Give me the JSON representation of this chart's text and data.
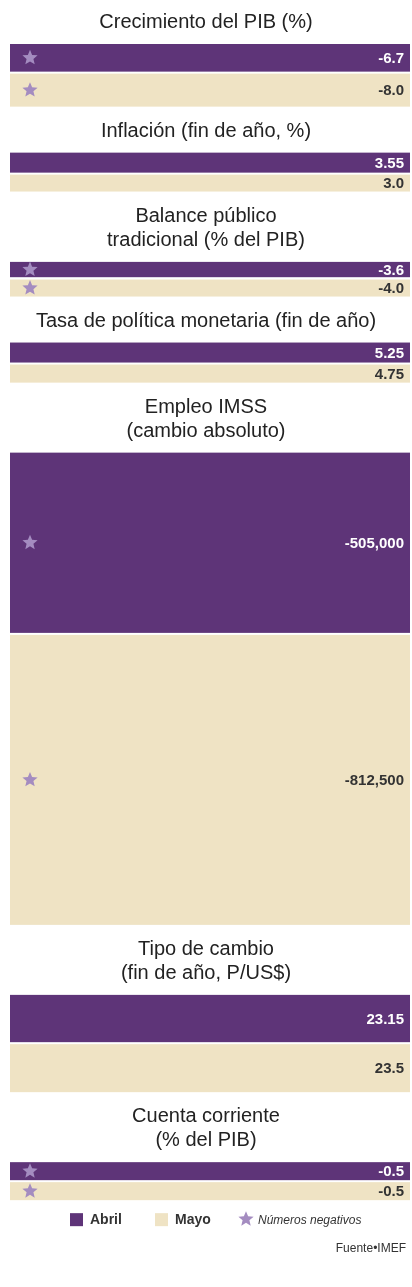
{
  "chart_data": [
    {
      "type": "other",
      "title": "Crecimiento del PIB (%)",
      "categories": [
        null,
        null
      ],
      "values": [
        -6.7,
        -8.0
      ],
      "value_labels": [
        "-6.7",
        "-8.0"
      ],
      "colors": [
        "#5e3478",
        "#efe3c4"
      ]
    },
    {
      "type": "other",
      "title": "Inflación (fin de año, %)",
      "categories": [
        null,
        null
      ],
      "values": [
        3.55,
        3.0
      ],
      "value_labels": [
        "3.55",
        "3.0"
      ],
      "colors": [
        "#5e3478",
        "#efe3c4"
      ]
    },
    {
      "type": "other",
      "title": "Balance público\ntradicional (% del PIB)",
      "categories": [
        null,
        null
      ],
      "values": [
        -3.6,
        -4.0
      ],
      "value_labels": [
        "-3.6",
        "-4.0"
      ],
      "colors": [
        "#5e3478",
        "#efe3c4"
      ]
    },
    {
      "type": "other",
      "title": "Tasa de política monetaria (fin de año)",
      "categories": [
        null,
        null
      ],
      "values": [
        5.25,
        4.75
      ],
      "value_labels": [
        "5.25",
        "4.75"
      ],
      "colors": [
        "#5e3478",
        "#efe3c4"
      ]
    },
    {
      "type": "other",
      "title": "Empleo IMSS\n(cambio absoluto)",
      "categories": [
        null,
        null
      ],
      "values": [
        -505000,
        -812500
      ],
      "value_labels": [
        "-505,000",
        "-812,500"
      ],
      "colors": [
        "#5e3478",
        "#efe3c4"
      ]
    },
    {
      "type": "other",
      "title": "Tipo de cambio\n(fin de año, P/US$)",
      "categories": [
        null,
        null
      ],
      "values": [
        23.15,
        23.5
      ],
      "value_labels": [
        "23.15",
        "23.5"
      ],
      "colors": [
        "#5e3478",
        "#efe3c4"
      ]
    },
    {
      "type": "other",
      "title": "Cuenta corriente\n(% del PIB)",
      "categories": [
        null,
        null
      ],
      "values": [
        -0.5,
        -0.5
      ],
      "value_labels": [
        "-0.5",
        "-0.5"
      ],
      "colors": [
        "#5e3478",
        "#efe3c4"
      ],
      "annotations": [
        "Abril",
        "Mayo",
        "Números negativos",
        "Fuente•IMEF"
      ]
    }
  ]
}
